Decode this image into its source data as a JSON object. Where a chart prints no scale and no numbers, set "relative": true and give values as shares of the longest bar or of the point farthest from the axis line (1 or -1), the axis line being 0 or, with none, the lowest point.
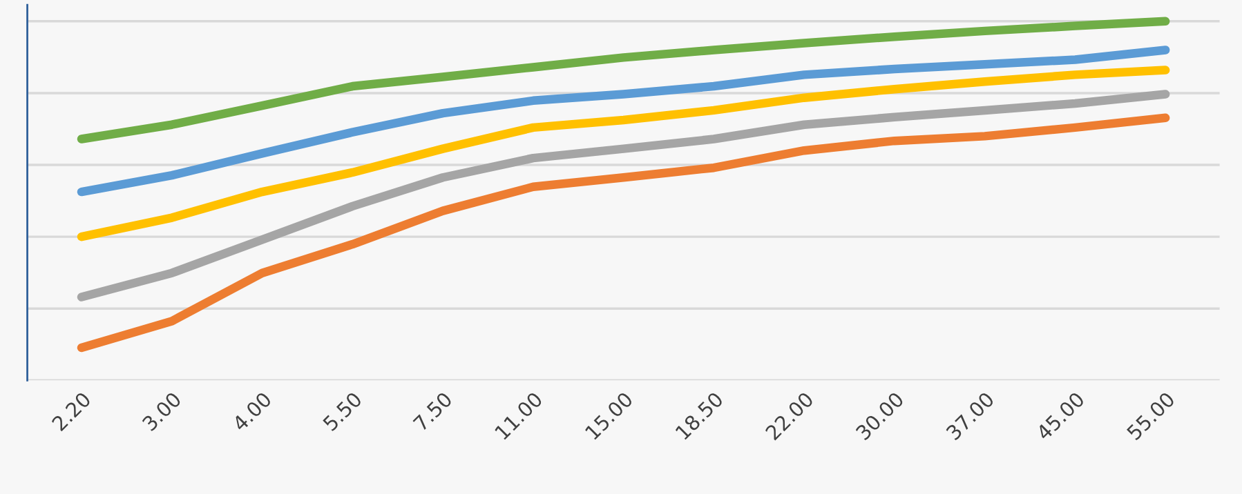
{
  "chart_data": {
    "type": "line",
    "relative": true,
    "grid": "y",
    "legend": false,
    "line_style": "solid",
    "categories": [
      "2.20",
      "3.00",
      "4.00",
      "5.50",
      "7.50",
      "11.00",
      "15.00",
      "18.50",
      "22.00",
      "30.00",
      "37.00",
      "45.00",
      "55.00"
    ],
    "series": [
      {
        "color": "#70ad47",
        "values": [
          0.672,
          0.712,
          0.765,
          0.819,
          0.845,
          0.872,
          0.899,
          0.92,
          0.939,
          0.957,
          0.973,
          0.987,
          1.0
        ]
      },
      {
        "color": "#5b9bd5",
        "values": [
          0.525,
          0.571,
          0.632,
          0.691,
          0.744,
          0.779,
          0.797,
          0.819,
          0.851,
          0.867,
          0.88,
          0.893,
          0.92
        ]
      },
      {
        "color": "#ffc000",
        "values": [
          0.4,
          0.453,
          0.525,
          0.579,
          0.645,
          0.704,
          0.725,
          0.752,
          0.787,
          0.811,
          0.832,
          0.851,
          0.864
        ]
      },
      {
        "color": "#a5a5a5",
        "values": [
          0.232,
          0.299,
          0.392,
          0.485,
          0.565,
          0.619,
          0.645,
          0.672,
          0.712,
          0.733,
          0.752,
          0.771,
          0.797
        ]
      },
      {
        "color": "#ed7d31",
        "values": [
          0.091,
          0.165,
          0.299,
          0.379,
          0.472,
          0.539,
          0.565,
          0.592,
          0.64,
          0.667,
          0.68,
          0.704,
          0.731
        ]
      }
    ]
  }
}
